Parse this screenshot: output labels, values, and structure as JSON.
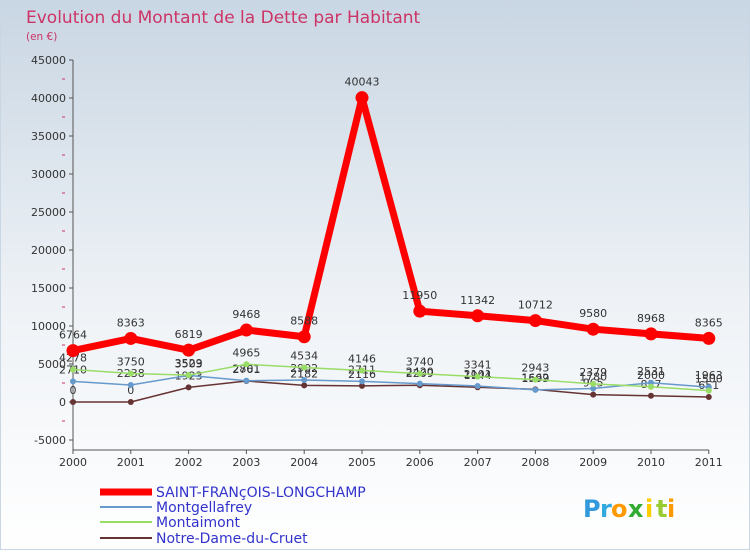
{
  "chart_data": {
    "type": "line",
    "title": "Evolution du Montant de la Dette par Habitant",
    "subtitle": "(en €)",
    "x": [
      "2000",
      "2001",
      "2002",
      "2003",
      "2004",
      "2005",
      "2006",
      "2007",
      "2008",
      "2009",
      "2010",
      "2011"
    ],
    "ylim": [
      -5000,
      45000
    ],
    "yticks": [
      -5000,
      0,
      5000,
      10000,
      15000,
      20000,
      25000,
      30000,
      35000,
      40000,
      45000
    ],
    "yticks_labels": [
      "-5000",
      "0",
      "5000",
      "10000",
      "15000",
      "20000",
      "25000",
      "30000",
      "35000",
      "40000",
      "45000"
    ],
    "series": [
      {
        "name": "SAINT-FRANçOIS-LONGCHAMP",
        "color": "#ff0000",
        "values": [
          6764,
          8363,
          6819,
          9468,
          8588,
          40043,
          11950,
          11342,
          10712,
          9580,
          8968,
          8365
        ],
        "labels": [
          "6764",
          "8363",
          "6819",
          "9468",
          "8588",
          "40043",
          "11950",
          "11342",
          "10712",
          "9580",
          "8968",
          "8365"
        ]
      },
      {
        "name": "Montgellafrey",
        "color": "#6699cc",
        "values": [
          2710,
          2238,
          3503,
          2801,
          2902,
          2711,
          2420,
          2101,
          1599,
          1780,
          2531,
          1963
        ],
        "labels": [
          "2710",
          "2238",
          "3503",
          "2801",
          "2902",
          "2711",
          "2420",
          "2101",
          "1599",
          "1780",
          "2531",
          "1963"
        ]
      },
      {
        "name": "Montaimont",
        "color": "#99dd66",
        "values": [
          4278,
          3750,
          3529,
          4965,
          4534,
          4146,
          3740,
          3341,
          2943,
          2379,
          2000,
          1500
        ],
        "labels": [
          "4278",
          "3750",
          "3529",
          "4965",
          "4534",
          "4146",
          "3740",
          "3341",
          "2943",
          "2379",
          "2000",
          "1500"
        ]
      },
      {
        "name": "Notre-Dame-du-Cruet",
        "color": "#663333",
        "values": [
          0,
          0,
          1923,
          2761,
          2182,
          2116,
          2209,
          1944,
          1662,
          965,
          817,
          651
        ],
        "labels": [
          "0",
          "0",
          "1923",
          "2761",
          "2182",
          "2116",
          "2209",
          "1944",
          "1662",
          "965",
          "817",
          "651"
        ]
      }
    ],
    "legend_position": "bottom-left",
    "grid": false
  },
  "brand": {
    "letters": [
      "P",
      "r",
      "o",
      "x",
      "i",
      "t",
      "i"
    ],
    "colors": [
      "#3399dd",
      "#33aadd",
      "#ff9900",
      "#33aa33",
      "#ffcc00",
      "#99cc33",
      "#ff9900"
    ]
  }
}
